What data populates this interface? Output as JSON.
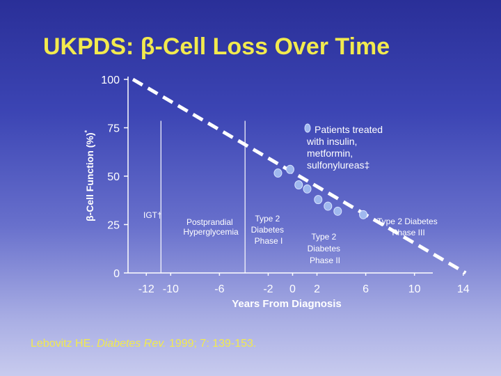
{
  "slide": {
    "title": "UKPDS: β-Cell Loss Over Time",
    "citation": {
      "author": "Lebovitz HE.",
      "journal": "Diabetes Rev.",
      "details": "1999; 7: 139-153."
    }
  },
  "colors": {
    "title_text": "#f2ea4e",
    "text": "#ffffff",
    "citation_text": "#f2ea4e",
    "marker_fill": "#9fb8ee",
    "marker_stroke": "#d7e2ff",
    "trend_line": "#ffffff"
  },
  "chart_data": {
    "type": "scatter",
    "xlabel": "Years From Diagnosis",
    "ylabel": "β-Cell Function (%)",
    "ylabel_superscript": "*",
    "xlim": [
      -13.5,
      15.5
    ],
    "ylim": [
      0,
      100
    ],
    "x_ticks": [
      {
        "value": -12,
        "label": "-12"
      },
      {
        "value": -10,
        "label": "-10"
      },
      {
        "value": -6,
        "label": "-6"
      },
      {
        "value": -2,
        "label": "-2"
      },
      {
        "value": 0,
        "label": "0"
      },
      {
        "value": 2,
        "label": "2"
      },
      {
        "value": 6,
        "label": "6"
      },
      {
        "value": 10,
        "label": "10"
      },
      {
        "value": 14,
        "label": "14"
      }
    ],
    "y_ticks": [
      {
        "value": 0,
        "label": "0"
      },
      {
        "value": 25,
        "label": "25"
      },
      {
        "value": 50,
        "label": "50"
      },
      {
        "value": 75,
        "label": "75"
      },
      {
        "value": 100,
        "label": "100"
      }
    ],
    "trend_line": {
      "style": "dashed",
      "from": {
        "x": -13.1,
        "y": 100
      },
      "to": {
        "x": 14.2,
        "y": 0
      }
    },
    "phase_dividers": [
      -10.8,
      -3.9
    ],
    "series": [
      {
        "values": [
          {
            "x": -1.2,
            "y": 51.6
          },
          {
            "x": -0.2,
            "y": 53.5
          },
          {
            "x": 0.5,
            "y": 45.5
          },
          {
            "x": 1.2,
            "y": 43.4
          },
          {
            "x": 2.1,
            "y": 37.9
          },
          {
            "x": 2.9,
            "y": 34.5
          },
          {
            "x": 3.7,
            "y": 31.9
          },
          {
            "x": 5.8,
            "y": 30.1
          }
        ]
      }
    ],
    "legend": {
      "label_lines": [
        "Patients treated",
        "with insulin,",
        "metformin,",
        "sulfonylureas‡"
      ],
      "placement": "top-right"
    },
    "annotations": [
      {
        "lines": [
          "IGT†"
        ]
      },
      {
        "lines": [
          "Postprandial",
          "Hyperglycemia"
        ]
      },
      {
        "lines": [
          "Type 2",
          "Diabetes",
          "Phase I"
        ]
      },
      {
        "lines": [
          "Type 2",
          "Diabetes",
          "Phase II"
        ]
      },
      {
        "lines": [
          "Type 2 Diabetes",
          "Phase III"
        ]
      }
    ]
  }
}
